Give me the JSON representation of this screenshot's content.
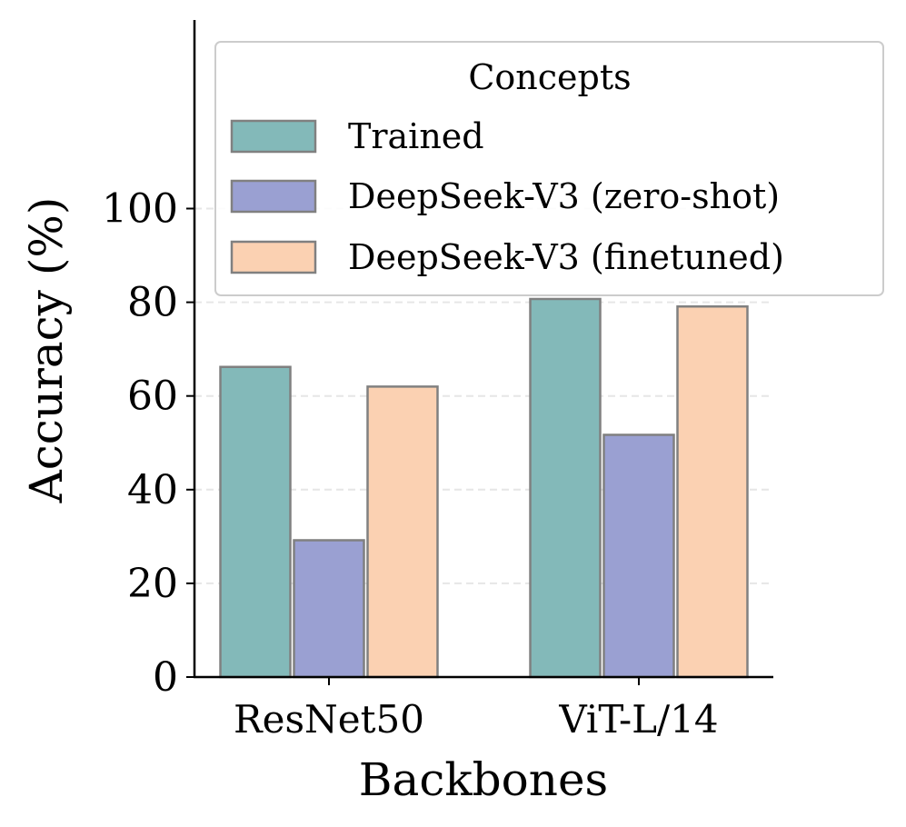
{
  "chart_data": {
    "type": "bar",
    "categories": [
      "ResNet50",
      "ViT-L/14"
    ],
    "series": [
      {
        "name": "Trained",
        "values": [
          66.2,
          80.7
        ],
        "color": "#83b9b9"
      },
      {
        "name": "DeepSeek-V3 (zero-shot)",
        "values": [
          29.2,
          51.7
        ],
        "color": "#9aa0d2"
      },
      {
        "name": "DeepSeek-V3 (finetuned)",
        "values": [
          62.0,
          79.1
        ],
        "color": "#fbd1b2"
      }
    ],
    "xlabel": "Backbones",
    "ylabel": "Accuracy (%)",
    "ylim": [
      0,
      140
    ],
    "yticks": [
      0,
      20,
      40,
      60,
      80,
      100
    ],
    "grid": true,
    "legend": {
      "title": "Concepts",
      "placement": "top-right"
    },
    "bar_edge_color": "#808080",
    "grid_color": "#e6e6e6"
  }
}
